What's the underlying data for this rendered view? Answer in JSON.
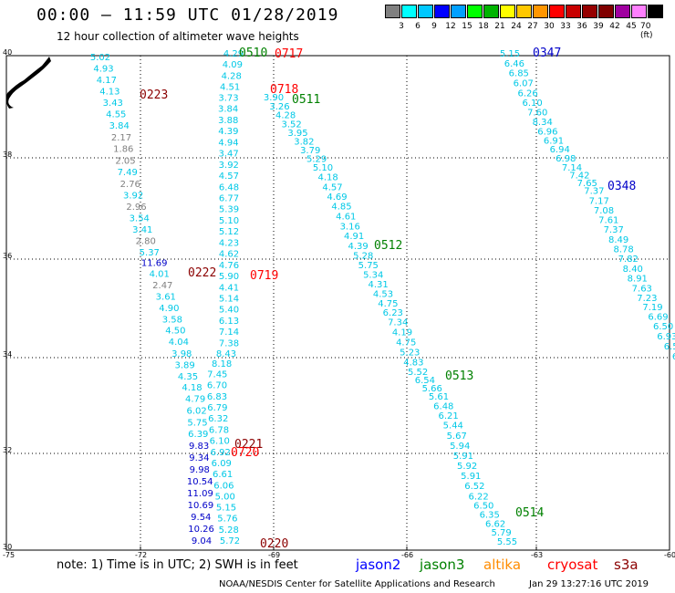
{
  "header": {
    "title": "00:00 – 11:59 UTC 01/28/2019",
    "subtitle": "12 hour collection of altimeter wave heights"
  },
  "colorbar": {
    "colors": [
      "#808080",
      "#00ffff",
      "#00c8ff",
      "#0000ff",
      "#00a0ff",
      "#00ff00",
      "#00b400",
      "#ffff00",
      "#ffc800",
      "#ff9600",
      "#ff0000",
      "#c80000",
      "#960000",
      "#800000",
      "#a000a0",
      "#ff80ff",
      "#000000"
    ],
    "labels": [
      "3",
      "6",
      "9",
      "12",
      "15",
      "18",
      "21",
      "24",
      "27",
      "30",
      "33",
      "36",
      "39",
      "42",
      "45",
      "70 (ft)"
    ]
  },
  "axes": {
    "lon_ticks": [
      "-75",
      "-72",
      "-69",
      "-66",
      "-63",
      "-60"
    ],
    "lat_ticks": [
      "40",
      "38",
      "36",
      "34",
      "32",
      "30"
    ]
  },
  "legend": {
    "note": "note:  1) Time is in UTC;  2) SWH is in feet",
    "satellites": [
      {
        "name": "jason2",
        "color": "#0000ff"
      },
      {
        "name": "jason3",
        "color": "#008000"
      },
      {
        "name": "altika",
        "color": "#ff8c00"
      },
      {
        "name": "cryosat",
        "color": "#ff0000"
      },
      {
        "name": "s3a",
        "color": "#8b0000"
      }
    ]
  },
  "footer": {
    "credit": "NOAA/NESDIS Center for Satellite Applications and Research",
    "timestamp": "Jan 29 13:27:16 UTC 2019"
  },
  "track_labels": [
    {
      "text": "0223",
      "color": "#8b0000"
    },
    {
      "text": "0222",
      "color": "#8b0000"
    },
    {
      "text": "0221",
      "color": "#8b0000"
    },
    {
      "text": "0220",
      "color": "#8b0000"
    },
    {
      "text": "0717",
      "color": "#ff0000"
    },
    {
      "text": "0718",
      "color": "#ff0000"
    },
    {
      "text": "0719",
      "color": "#ff0000"
    },
    {
      "text": "0720",
      "color": "#ff0000"
    },
    {
      "text": "0510",
      "color": "#008000"
    },
    {
      "text": "0511",
      "color": "#008000"
    },
    {
      "text": "0512",
      "color": "#008000"
    },
    {
      "text": "0513",
      "color": "#008000"
    },
    {
      "text": "0514",
      "color": "#008000"
    },
    {
      "text": "0347",
      "color": "#0000c8"
    },
    {
      "text": "0348",
      "color": "#0000c8"
    }
  ],
  "tracks": [
    {
      "name": "s3a-0222",
      "values": [
        "5.02",
        "4.93",
        "4.17",
        "4.13",
        "3.43",
        "4.55",
        "3.84",
        "2.17",
        "1.86",
        "2.05",
        "7.49",
        "2.76",
        "3.92",
        "2.96",
        "3.54",
        "3.41",
        "2.80",
        "5.37",
        "11.69",
        "4.01",
        "2.47",
        "3.61",
        "4.90",
        "3.58",
        "4.50",
        "4.04",
        "3.98",
        "3.89",
        "4.35",
        "4.18",
        "4.79",
        "6.02",
        "5.75",
        "6.39",
        "9.83",
        "9.34",
        "9.98",
        "10.54",
        "11.09",
        "10.69",
        "9.54",
        "10.26",
        "9.04"
      ]
    },
    {
      "name": "cryosat-0718",
      "values": [
        "4.29",
        "4.09",
        "4.28",
        "4.51",
        "3.73",
        "3.84",
        "3.88",
        "4.39",
        "4.94",
        "3.47",
        "3.92",
        "4.57",
        "6.48",
        "6.77",
        "5.39",
        "5.10",
        "5.12",
        "4.23",
        "4.62",
        "4.76",
        "5.90",
        "4.41",
        "5.14",
        "5.40",
        "6.13",
        "7.14",
        "7.38",
        "8.43",
        "8.18",
        "7.45",
        "6.70",
        "6.83",
        "6.79",
        "6.32",
        "6.78",
        "6.10",
        "6.92",
        "6.09",
        "6.61",
        "6.06",
        "5.00",
        "5.15",
        "5.76",
        "5.28",
        "5.72"
      ]
    },
    {
      "name": "jason3-0511",
      "values": [
        "3.90",
        "3.26",
        "4.28",
        "3.52",
        "3.95",
        "3.82",
        "3.79",
        "5.29",
        "5.10",
        "4.18",
        "4.57",
        "4.69",
        "4.85",
        "4.61",
        "3.16",
        "4.91",
        "4.39",
        "5.28",
        "5.75",
        "5.34",
        "4.31",
        "4.53",
        "4.75",
        "6.23",
        "7.34",
        "4.19",
        "4.75",
        "5.23",
        "4.83",
        "5.52",
        "6.54",
        "5.66",
        "5.61",
        "6.48",
        "6.21",
        "5.44",
        "5.67",
        "5.94",
        "5.91",
        "5.92",
        "5.91",
        "6.52",
        "6.22",
        "6.50",
        "6.35",
        "6.62",
        "5.79",
        "5.55"
      ]
    },
    {
      "name": "jason2-0347",
      "values": [
        "5.15",
        "6.46",
        "6.85",
        "6.07",
        "6.26",
        "6.10",
        "7.60",
        "8.34",
        "6.96",
        "6.91",
        "6.94",
        "6.98",
        "7.14",
        "7.42",
        "7.65",
        "7.37",
        "7.17",
        "7.08",
        "7.61",
        "7.37",
        "8.49",
        "8.78",
        "7.82",
        "8.40",
        "8.91",
        "7.63",
        "7.23",
        "7.19",
        "6.69",
        "6.50",
        "6.93",
        "6.5",
        "6"
      ]
    }
  ]
}
